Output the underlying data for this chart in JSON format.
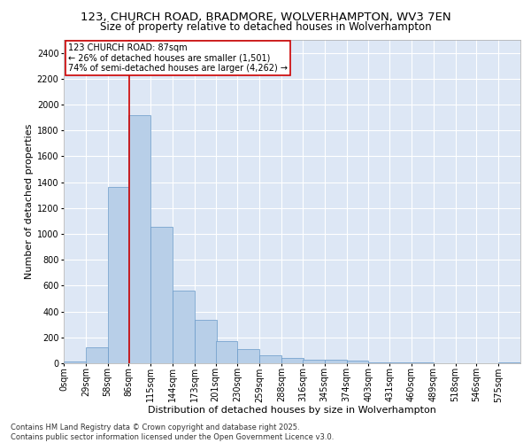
{
  "title_line1": "123, CHURCH ROAD, BRADMORE, WOLVERHAMPTON, WV3 7EN",
  "title_line2": "Size of property relative to detached houses in Wolverhampton",
  "xlabel": "Distribution of detached houses by size in Wolverhampton",
  "ylabel": "Number of detached properties",
  "footer_line1": "Contains HM Land Registry data © Crown copyright and database right 2025.",
  "footer_line2": "Contains public sector information licensed under the Open Government Licence v3.0.",
  "annotation_line1": "123 CHURCH ROAD: 87sqm",
  "annotation_line2": "← 26% of detached houses are smaller (1,501)",
  "annotation_line3": "74% of semi-detached houses are larger (4,262) →",
  "property_size": 87,
  "bar_color": "#b8cfe8",
  "bar_edge_color": "#6899c8",
  "vline_color": "#cc0000",
  "annotation_box_color": "#cc0000",
  "background_color": "#dde7f5",
  "categories": [
    "0sqm",
    "29sqm",
    "58sqm",
    "86sqm",
    "115sqm",
    "144sqm",
    "173sqm",
    "201sqm",
    "230sqm",
    "259sqm",
    "288sqm",
    "316sqm",
    "345sqm",
    "374sqm",
    "403sqm",
    "431sqm",
    "460sqm",
    "489sqm",
    "518sqm",
    "546sqm",
    "575sqm"
  ],
  "bin_edges": [
    0,
    29,
    58,
    86,
    115,
    144,
    173,
    201,
    230,
    259,
    288,
    316,
    345,
    374,
    403,
    431,
    460,
    489,
    518,
    546,
    575
  ],
  "values": [
    15,
    125,
    1360,
    1920,
    1055,
    560,
    335,
    170,
    110,
    65,
    38,
    30,
    28,
    20,
    10,
    8,
    5,
    3,
    2,
    1,
    10
  ],
  "ylim": [
    0,
    2500
  ],
  "yticks": [
    0,
    200,
    400,
    600,
    800,
    1000,
    1200,
    1400,
    1600,
    1800,
    2000,
    2200,
    2400
  ],
  "title_fontsize": 9.5,
  "subtitle_fontsize": 8.5,
  "axis_label_fontsize": 8,
  "tick_fontsize": 7,
  "footer_fontsize": 6,
  "annotation_fontsize": 7
}
